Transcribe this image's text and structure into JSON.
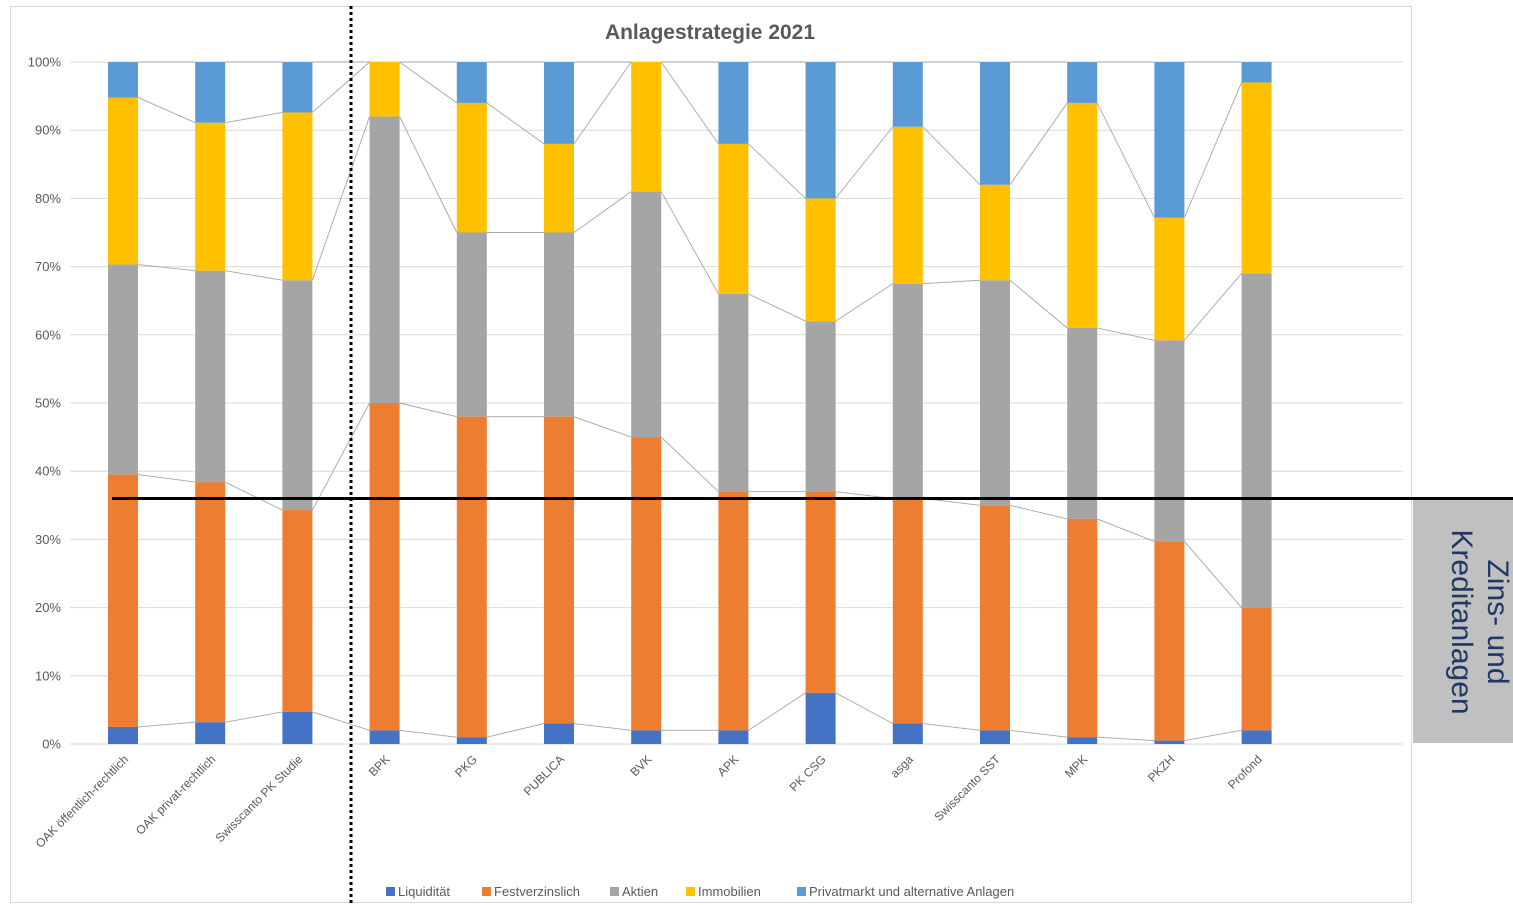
{
  "chart_data": {
    "type": "bar",
    "stacked": true,
    "percent_stacked": true,
    "title": "Anlagestrategie 2021",
    "categories": [
      "OAK öffentlich-rechtlich",
      "OAK privat-rechtlich",
      "Swisscanto PK Studie",
      "BPK",
      "PKG",
      "PUBLICA",
      "BVK",
      "APK",
      "PK CSG",
      "asga",
      "Swisscanto SST",
      "MPK",
      "PKZH",
      "Profond"
    ],
    "ytick_labels": [
      "0%",
      "10%",
      "20%",
      "30%",
      "40%",
      "50%",
      "60%",
      "70%",
      "80%",
      "90%",
      "100%"
    ],
    "ylim": [
      0,
      100
    ],
    "grid": true,
    "legend_position": "bottom",
    "series": [
      {
        "name": "Liquidität",
        "color": "#4472c4",
        "values": [
          2.5,
          3.2,
          4.7,
          2,
          1,
          3,
          2,
          2,
          7.5,
          3,
          2,
          1,
          0.5,
          2
        ]
      },
      {
        "name": "Festverzinslich",
        "color": "#ed7d31",
        "values": [
          37.0,
          35.2,
          29.6,
          48,
          47,
          45,
          43,
          35,
          29.5,
          33,
          33,
          32,
          29.2,
          18
        ]
      },
      {
        "name": "Aktien",
        "color": "#a5a5a5",
        "values": [
          30.8,
          31.0,
          33.7,
          42,
          27,
          27,
          36,
          29,
          25,
          31.5,
          33,
          28,
          29.5,
          49
        ]
      },
      {
        "name": "Immobilien",
        "color": "#ffc000",
        "values": [
          24.5,
          21.7,
          24.6,
          8,
          19,
          13,
          19,
          22,
          18,
          23,
          14,
          33,
          18,
          28
        ]
      },
      {
        "name": "Privatmarkt und alternative Anlagen",
        "color": "#5b9bd5",
        "values": [
          5.2,
          8.9,
          7.4,
          0,
          6,
          12,
          0,
          12,
          20,
          9.5,
          18,
          6,
          22.8,
          3
        ]
      }
    ],
    "reference_line": {
      "value": 36
    },
    "annotation": {
      "text": "Zins- und Kreditanlagen",
      "lines": [
        "Zins- und",
        "Kreditanlagen"
      ],
      "color": "#1f3864",
      "background": "#c0c0c0"
    }
  }
}
